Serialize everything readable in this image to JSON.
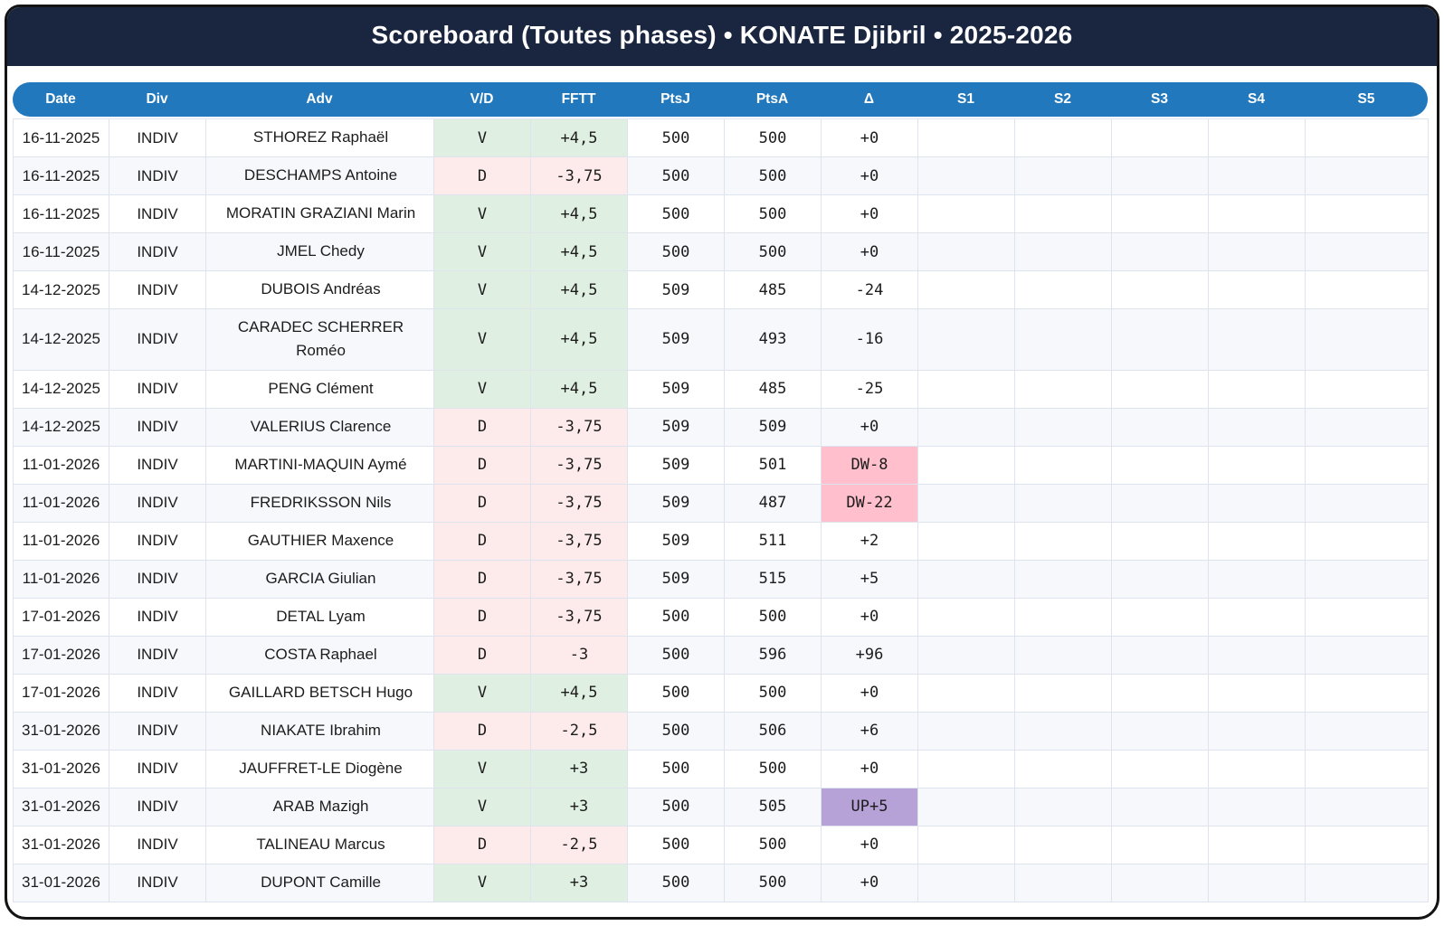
{
  "title": "Scoreboard (Toutes phases) • KONATE Djibril • 2025-2026",
  "colors": {
    "title_bar_navy": "#1a2640",
    "header_pill_blue": "#2278bd",
    "win_cell_bg": "#dff0e2",
    "win_text": "#1f8038",
    "loss_cell_bg": "#fdeaea",
    "loss_text": "#d32f3f",
    "delta_down_badge_pink": "#ffbfcc",
    "delta_up_badge_purple": "#b6a2d7",
    "card_border": "#141414"
  },
  "table": {
    "columns": [
      "Date",
      "Div",
      "Adv",
      "V/D",
      "FFTT",
      "PtsJ",
      "PtsA",
      "Δ",
      "S1",
      "S2",
      "S3",
      "S4",
      "S5"
    ],
    "rows": [
      {
        "date": "16-11-2025",
        "division": "INDIV",
        "adversary": "STHOREZ Raphaël",
        "vd": "V",
        "fftt": "+4,5",
        "ptsj": "500",
        "ptsa": "500",
        "delta": "+0",
        "s1": "",
        "s2": "",
        "s3": "",
        "s4": "",
        "s5": ""
      },
      {
        "date": "16-11-2025",
        "division": "INDIV",
        "adversary": "DESCHAMPS Antoine",
        "vd": "D",
        "fftt": "-3,75",
        "ptsj": "500",
        "ptsa": "500",
        "delta": "+0",
        "s1": "",
        "s2": "",
        "s3": "",
        "s4": "",
        "s5": ""
      },
      {
        "date": "16-11-2025",
        "division": "INDIV",
        "adversary": "MORATIN GRAZIANI Marin",
        "vd": "V",
        "fftt": "+4,5",
        "ptsj": "500",
        "ptsa": "500",
        "delta": "+0",
        "s1": "",
        "s2": "",
        "s3": "",
        "s4": "",
        "s5": ""
      },
      {
        "date": "16-11-2025",
        "division": "INDIV",
        "adversary": "JMEL Chedy",
        "vd": "V",
        "fftt": "+4,5",
        "ptsj": "500",
        "ptsa": "500",
        "delta": "+0",
        "s1": "",
        "s2": "",
        "s3": "",
        "s4": "",
        "s5": ""
      },
      {
        "date": "14-12-2025",
        "division": "INDIV",
        "adversary": "DUBOIS Andréas",
        "vd": "V",
        "fftt": "+4,5",
        "ptsj": "509",
        "ptsa": "485",
        "delta": "-24",
        "s1": "",
        "s2": "",
        "s3": "",
        "s4": "",
        "s5": ""
      },
      {
        "date": "14-12-2025",
        "division": "INDIV",
        "adversary": "CARADEC SCHERRER Roméo",
        "vd": "V",
        "fftt": "+4,5",
        "ptsj": "509",
        "ptsa": "493",
        "delta": "-16",
        "s1": "",
        "s2": "",
        "s3": "",
        "s4": "",
        "s5": ""
      },
      {
        "date": "14-12-2025",
        "division": "INDIV",
        "adversary": "PENG Clément",
        "vd": "V",
        "fftt": "+4,5",
        "ptsj": "509",
        "ptsa": "485",
        "delta": "-25",
        "s1": "",
        "s2": "",
        "s3": "",
        "s4": "",
        "s5": ""
      },
      {
        "date": "14-12-2025",
        "division": "INDIV",
        "adversary": "VALERIUS Clarence",
        "vd": "D",
        "fftt": "-3,75",
        "ptsj": "509",
        "ptsa": "509",
        "delta": "+0",
        "s1": "",
        "s2": "",
        "s3": "",
        "s4": "",
        "s5": ""
      },
      {
        "date": "11-01-2026",
        "division": "INDIV",
        "adversary": "MARTINI-MAQUIN Aymé",
        "vd": "D",
        "fftt": "-3,75",
        "ptsj": "509",
        "ptsa": "501",
        "delta": "DW-8",
        "s1": "",
        "s2": "",
        "s3": "",
        "s4": "",
        "s5": ""
      },
      {
        "date": "11-01-2026",
        "division": "INDIV",
        "adversary": "FREDRIKSSON Nils",
        "vd": "D",
        "fftt": "-3,75",
        "ptsj": "509",
        "ptsa": "487",
        "delta": "DW-22",
        "s1": "",
        "s2": "",
        "s3": "",
        "s4": "",
        "s5": ""
      },
      {
        "date": "11-01-2026",
        "division": "INDIV",
        "adversary": "GAUTHIER Maxence",
        "vd": "D",
        "fftt": "-3,75",
        "ptsj": "509",
        "ptsa": "511",
        "delta": "+2",
        "s1": "",
        "s2": "",
        "s3": "",
        "s4": "",
        "s5": ""
      },
      {
        "date": "11-01-2026",
        "division": "INDIV",
        "adversary": "GARCIA Giulian",
        "vd": "D",
        "fftt": "-3,75",
        "ptsj": "509",
        "ptsa": "515",
        "delta": "+5",
        "s1": "",
        "s2": "",
        "s3": "",
        "s4": "",
        "s5": ""
      },
      {
        "date": "17-01-2026",
        "division": "INDIV",
        "adversary": "DETAL Lyam",
        "vd": "D",
        "fftt": "-3,75",
        "ptsj": "500",
        "ptsa": "500",
        "delta": "+0",
        "s1": "",
        "s2": "",
        "s3": "",
        "s4": "",
        "s5": ""
      },
      {
        "date": "17-01-2026",
        "division": "INDIV",
        "adversary": "COSTA Raphael",
        "vd": "D",
        "fftt": "-3",
        "ptsj": "500",
        "ptsa": "596",
        "delta": "+96",
        "s1": "",
        "s2": "",
        "s3": "",
        "s4": "",
        "s5": ""
      },
      {
        "date": "17-01-2026",
        "division": "INDIV",
        "adversary": "GAILLARD BETSCH Hugo",
        "vd": "V",
        "fftt": "+4,5",
        "ptsj": "500",
        "ptsa": "500",
        "delta": "+0",
        "s1": "",
        "s2": "",
        "s3": "",
        "s4": "",
        "s5": ""
      },
      {
        "date": "31-01-2026",
        "division": "INDIV",
        "adversary": "NIAKATE Ibrahim",
        "vd": "D",
        "fftt": "-2,5",
        "ptsj": "500",
        "ptsa": "506",
        "delta": "+6",
        "s1": "",
        "s2": "",
        "s3": "",
        "s4": "",
        "s5": ""
      },
      {
        "date": "31-01-2026",
        "division": "INDIV",
        "adversary": "JAUFFRET-LE Diogène",
        "vd": "V",
        "fftt": "+3",
        "ptsj": "500",
        "ptsa": "500",
        "delta": "+0",
        "s1": "",
        "s2": "",
        "s3": "",
        "s4": "",
        "s5": ""
      },
      {
        "date": "31-01-2026",
        "division": "INDIV",
        "adversary": "ARAB Mazigh",
        "vd": "V",
        "fftt": "+3",
        "ptsj": "500",
        "ptsa": "505",
        "delta": "UP+5",
        "s1": "",
        "s2": "",
        "s3": "",
        "s4": "",
        "s5": ""
      },
      {
        "date": "31-01-2026",
        "division": "INDIV",
        "adversary": "TALINEAU Marcus",
        "vd": "D",
        "fftt": "-2,5",
        "ptsj": "500",
        "ptsa": "500",
        "delta": "+0",
        "s1": "",
        "s2": "",
        "s3": "",
        "s4": "",
        "s5": ""
      },
      {
        "date": "31-01-2026",
        "division": "INDIV",
        "adversary": "DUPONT Camille",
        "vd": "V",
        "fftt": "+3",
        "ptsj": "500",
        "ptsa": "500",
        "delta": "+0",
        "s1": "",
        "s2": "",
        "s3": "",
        "s4": "",
        "s5": ""
      }
    ]
  }
}
